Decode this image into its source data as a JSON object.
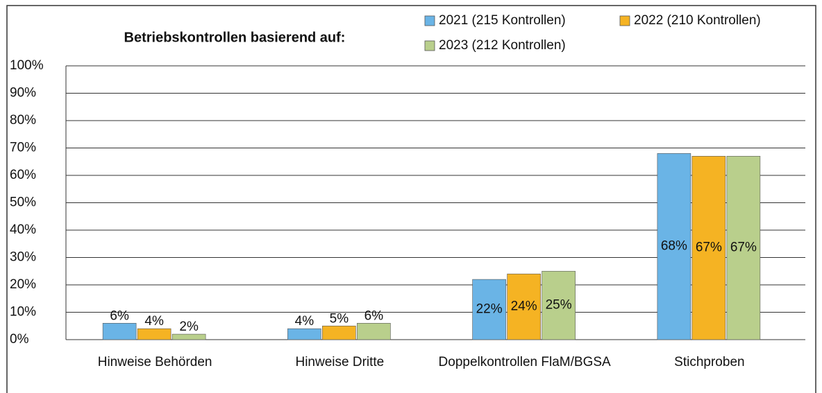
{
  "chart_data": {
    "type": "bar",
    "title": "Betriebskontrollen basierend auf:",
    "categories": [
      "Hinweise Behörden",
      "Hinweise Dritte",
      "Doppelkontrollen FlaM/BGSA",
      "Stichproben"
    ],
    "series": [
      {
        "name": "2021 (215 Kontrollen)",
        "color": "#6ab4e6",
        "values": [
          6,
          4,
          22,
          68
        ],
        "value_labels": [
          "6%",
          "4%",
          "22%",
          "68%"
        ]
      },
      {
        "name": "2022 (210 Kontrollen)",
        "color": "#f5b323",
        "values": [
          4,
          5,
          24,
          67
        ],
        "value_labels": [
          "4%",
          "5%",
          "24%",
          "67%"
        ]
      },
      {
        "name": "2023 (212 Kontrollen)",
        "color": "#b9cf8c",
        "values": [
          2,
          6,
          25,
          67
        ],
        "value_labels": [
          "2%",
          "6%",
          "25%",
          "67%"
        ]
      }
    ],
    "ylim": [
      0,
      100
    ],
    "yticks": [
      {
        "value": 0,
        "label": "0%"
      },
      {
        "value": 10,
        "label": "10%"
      },
      {
        "value": 20,
        "label": "20%"
      },
      {
        "value": 30,
        "label": "30%"
      },
      {
        "value": 40,
        "label": "40%"
      },
      {
        "value": 50,
        "label": "50%"
      },
      {
        "value": 60,
        "label": "60%"
      },
      {
        "value": 70,
        "label": "70%"
      },
      {
        "value": 80,
        "label": "80%"
      },
      {
        "value": 90,
        "label": "90%"
      },
      {
        "value": 100,
        "label": "100%"
      }
    ],
    "grid": true
  }
}
